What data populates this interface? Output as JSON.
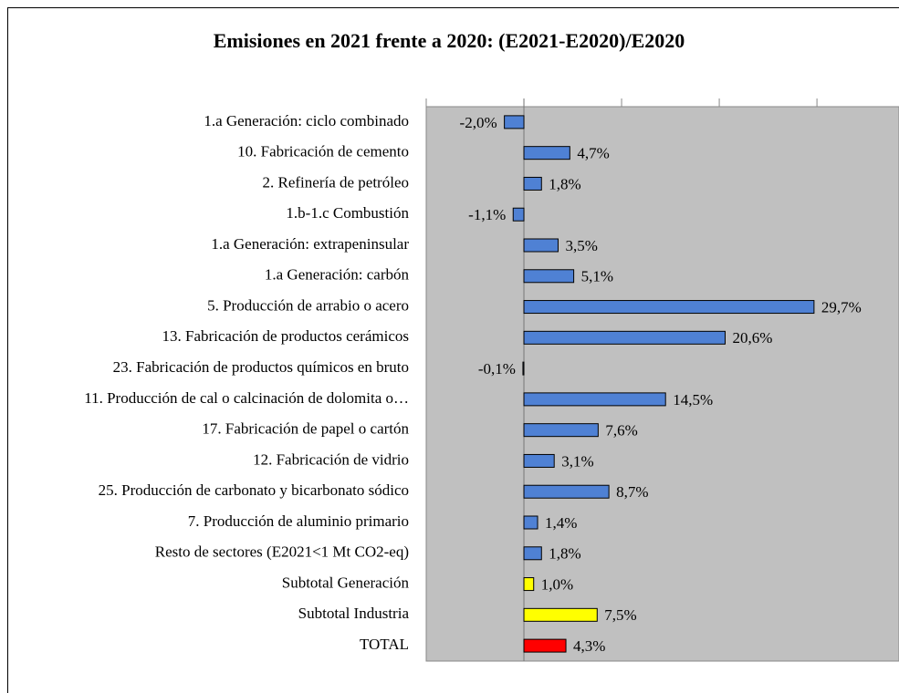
{
  "chart_data": {
    "type": "hbar",
    "title": "Emisiones en 2021 frente a 2020: (E2021-E2020)/E2020",
    "categories": [
      "1.a Generación: ciclo combinado",
      "10. Fabricación de cemento",
      "2. Refinería de petróleo",
      "1.b-1.c Combustión",
      "1.a Generación: extrapeninsular",
      "1.a Generación: carbón",
      "5. Producción de arrabio o acero",
      "13. Fabricación de productos cerámicos",
      "23. Fabricación de productos químicos en bruto",
      "11. Producción de cal o calcinación de dolomita o…",
      "17. Fabricación de papel o cartón",
      "12. Fabricación de vidrio",
      "25. Producción de carbonato y bicarbonato sódico",
      "7. Producción de aluminio primario",
      "Resto de sectores (E2021<1 Mt CO2-eq)",
      "Subtotal Generación",
      "Subtotal Industria",
      "TOTAL"
    ],
    "values": [
      -2.0,
      4.7,
      1.8,
      -1.1,
      3.5,
      5.1,
      29.7,
      20.6,
      -0.1,
      14.5,
      7.6,
      3.1,
      8.7,
      1.4,
      1.8,
      1.0,
      7.5,
      4.3
    ],
    "value_labels": [
      "-2,0%",
      "4,7%",
      "1,8%",
      "-1,1%",
      "3,5%",
      "5,1%",
      "29,7%",
      "20,6%",
      "-0,1%",
      "14,5%",
      "7,6%",
      "3,1%",
      "8,7%",
      "1,4%",
      "1,8%",
      "1,0%",
      "7,5%",
      "4,3%"
    ],
    "colors": [
      "#4f81d4",
      "#4f81d4",
      "#4f81d4",
      "#4f81d4",
      "#4f81d4",
      "#4f81d4",
      "#4f81d4",
      "#4f81d4",
      "#4f81d4",
      "#4f81d4",
      "#4f81d4",
      "#4f81d4",
      "#4f81d4",
      "#4f81d4",
      "#4f81d4",
      "#ffff00",
      "#ffff00",
      "#ff0000"
    ],
    "xlim": [
      -10,
      38.4
    ],
    "xticks": [
      -10,
      0,
      10,
      20,
      30
    ],
    "grid": true
  }
}
